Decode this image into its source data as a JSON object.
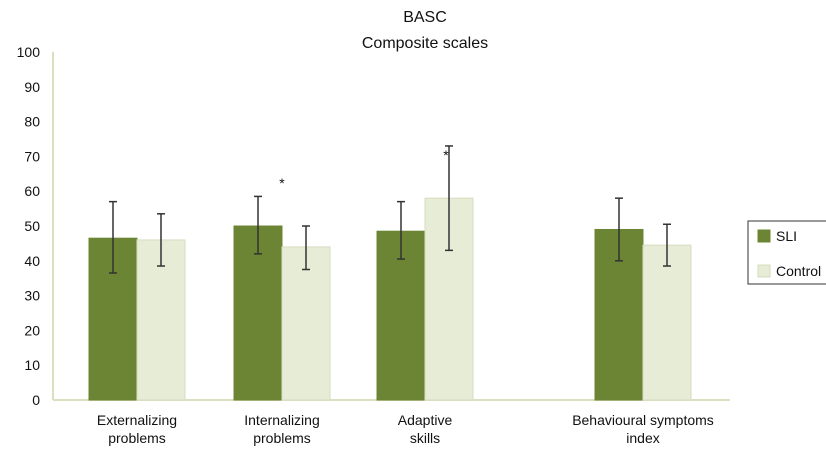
{
  "chart_data": {
    "type": "bar",
    "title": "BASC",
    "subtitle": "Composite scales",
    "categories": [
      [
        "Externalizing",
        "problems"
      ],
      [
        "Internalizing",
        "problems"
      ],
      [
        "Adaptive",
        "skills"
      ],
      [
        "Behavioural symptoms",
        "index"
      ]
    ],
    "series": [
      {
        "name": "SLI",
        "color": "#6b8535",
        "values": [
          46.5,
          50,
          48.5,
          49
        ],
        "error_low": [
          36.5,
          42,
          40.5,
          40
        ],
        "error_high": [
          57,
          58.5,
          57,
          58
        ]
      },
      {
        "name": "Control",
        "color": "#e7ecd7",
        "values": [
          46,
          44,
          58,
          44.5
        ],
        "error_low": [
          38.5,
          37.5,
          43,
          38.5
        ],
        "error_high": [
          53.5,
          50,
          73,
          50.5
        ]
      }
    ],
    "significance": [
      {
        "category_index": 1,
        "label": "*"
      },
      {
        "category_index": 2,
        "label": "*"
      }
    ],
    "ylim": [
      0,
      100
    ],
    "yticks": [
      0,
      10,
      20,
      30,
      40,
      50,
      60,
      70,
      80,
      90,
      100
    ],
    "xlabel": "",
    "ylabel": "",
    "grid": false,
    "legend_position": "right",
    "axis_color": "#d9e0bf",
    "error_bar_color": "#333333"
  }
}
